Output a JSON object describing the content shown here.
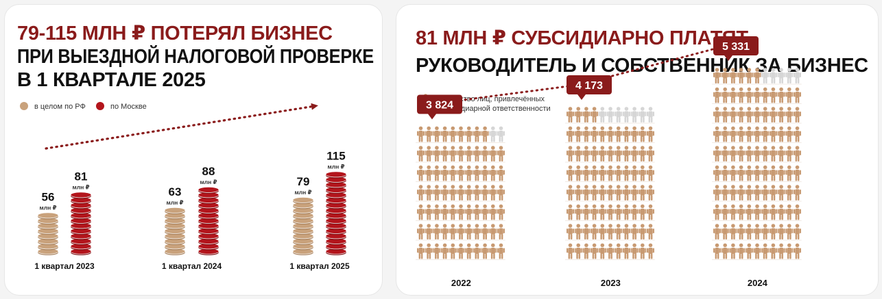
{
  "colors": {
    "accent": "#8a1b1b",
    "coin_tan": "#c9a27c",
    "coin_red": "#b3151c",
    "person_tan": "#c89a72",
    "person_grey": "#d6d6d6"
  },
  "left_panel": {
    "title_line1": "79-115 МЛН ₽ ПОТЕРЯЛ БИЗНЕС",
    "title_line2": "ПРИ ВЫЕЗДНОЙ НАЛОГОВОЙ ПРОВЕРКЕ",
    "title_line3": "В 1 КВАРТАЛЕ 2025"
  },
  "right_panel": {
    "title_line1": "81 МЛН ₽ СУБСИДИАРНО ПЛАТЯТ",
    "title_line2": "РУКОВОДИТЕЛЬ И СОБСТВЕННИК ЗА БИЗНЕС"
  },
  "chart_data": [
    {
      "type": "bar",
      "categories": [
        "1 квартал 2023",
        "1 квартал 2024",
        "1 квартал 2025"
      ],
      "series": [
        {
          "name": "в целом по РФ",
          "values": [
            56,
            63,
            79
          ],
          "color": "#c9a27c"
        },
        {
          "name": "по Москве",
          "values": [
            81,
            88,
            115
          ],
          "color": "#b3151c"
        }
      ],
      "unit_label": "млн ₽",
      "legend": "top-left",
      "trend_arrow": true
    },
    {
      "type": "bar",
      "categories": [
        "2022",
        "2023",
        "2024"
      ],
      "series": [
        {
          "name": "количество лиц, привлечённых к субсидиарной ответственности",
          "values": [
            3824,
            4173,
            5331
          ]
        }
      ],
      "value_labels": [
        "3 824",
        "4 173",
        "5 331"
      ],
      "legend_line1": "количество лиц, привлечённых",
      "legend_line2": "к субсидиарной ответственности",
      "legend": "top-left",
      "icons_per_row": 11,
      "unit_per_icon": 50
    }
  ]
}
